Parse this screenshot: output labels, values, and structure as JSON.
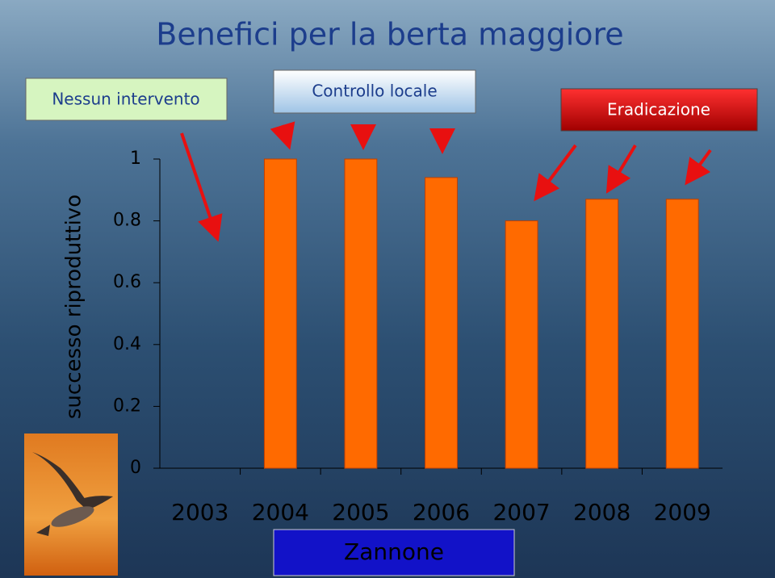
{
  "chart_data": {
    "type": "bar",
    "title": "Benefici per la berta maggiore",
    "ylabel": "successo riproduttivo",
    "xlabel": "Zannone",
    "annotations": [
      "Nessun intervento",
      "Controllo locale",
      "Eradicazione"
    ],
    "categories": [
      "2003",
      "2004",
      "2005",
      "2006",
      "2007",
      "2008",
      "2009"
    ],
    "values": [
      null,
      1,
      1,
      0.94,
      0.8,
      0.87,
      0.87
    ],
    "color": "#ff6a00",
    "ylim": [
      0,
      1
    ],
    "yticks": [
      0,
      0.2,
      0.4,
      0.6,
      0.8,
      1
    ],
    "grid": false
  }
}
